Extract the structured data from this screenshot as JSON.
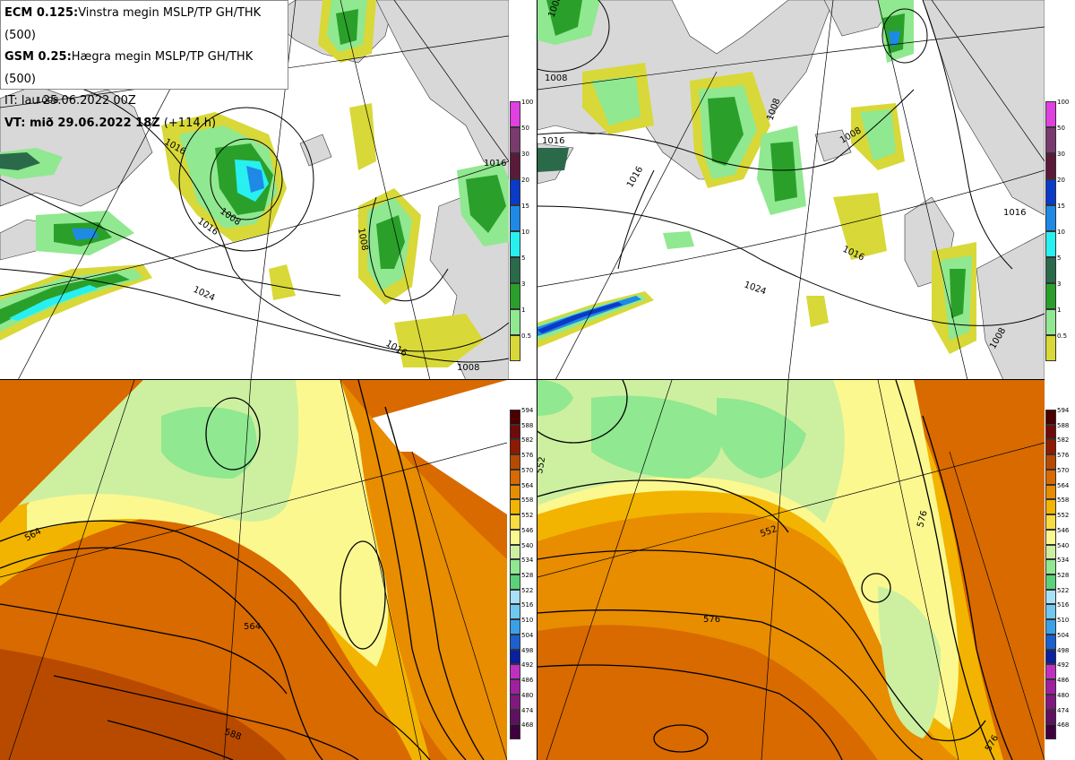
{
  "info": {
    "line1_bold": "ECM 0.125:",
    "line1_text": "Vinstra megin MSLP/TP GH/THK (500)",
    "line2_bold": "GSM 0.25:",
    "line2_text": "Hægra megin MSLP/TP GH/THK (500)",
    "line3": "IT: lau 25.06.2022 00Z",
    "line4_bold": "VT: mið 29.06.2022 18Z",
    "line4_text": "(+114 h)"
  },
  "precip_legend": {
    "ticks": [
      "100",
      "50",
      "30",
      "20",
      "15",
      "10",
      "5",
      "3",
      "1",
      "0.5"
    ],
    "colors": [
      "#e040e0",
      "#7a3a6e",
      "#5a1a3a",
      "#0a3ac8",
      "#1e8ae6",
      "#28f0f0",
      "#2a6a4a",
      "#2aa02a",
      "#90e890",
      "#d8d838"
    ]
  },
  "height_legend": {
    "ticks": [
      "594",
      "588",
      "582",
      "576",
      "570",
      "564",
      "558",
      "552",
      "546",
      "540",
      "534",
      "528",
      "522",
      "516",
      "510",
      "504",
      "498",
      "492",
      "486",
      "480",
      "474",
      "468"
    ],
    "colors": [
      "#4a0000",
      "#6e0a0a",
      "#8e1a00",
      "#b84a00",
      "#d86a00",
      "#e88c00",
      "#f2b400",
      "#f8dc40",
      "#fcf890",
      "#cdf0a0",
      "#90e890",
      "#5ad27a",
      "#a8e0f8",
      "#70c8f0",
      "#3aa0e8",
      "#1a60d0",
      "#0a20a0",
      "#c030c0",
      "#a020a0",
      "#801880",
      "#601060",
      "#400040"
    ]
  },
  "map_labels": {
    "tl": [
      "1016",
      "1008",
      "1016",
      "1008",
      "1024",
      "1016",
      "1008",
      "1016",
      "1008"
    ],
    "tr": [
      "1008",
      "1016",
      "1008",
      "1008",
      "1016",
      "1016",
      "1016",
      "1024",
      "1008",
      "1008"
    ],
    "bl": [
      "564",
      "564",
      "588"
    ],
    "br": [
      "552",
      "552",
      "576",
      "576",
      "576"
    ]
  }
}
